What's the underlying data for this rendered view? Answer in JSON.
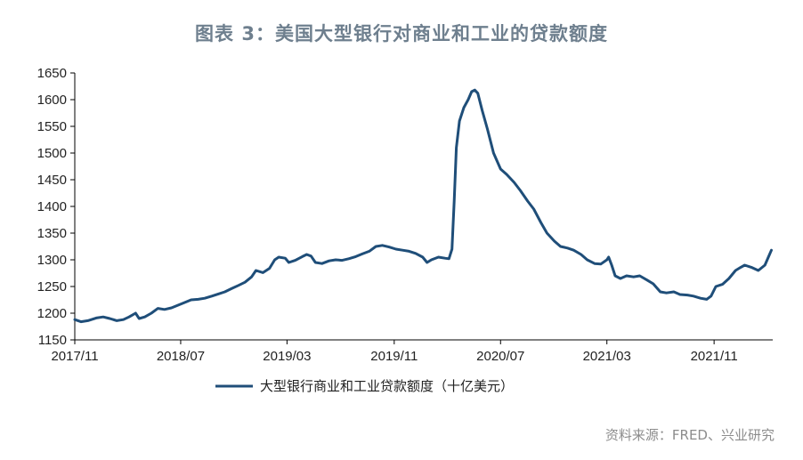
{
  "chart_data": {
    "type": "line",
    "title": "图表 3：美国大型银行对商业和工业的贷款额度",
    "source": "资料来源：FRED、兴业研究",
    "ylim": [
      1150,
      1650
    ],
    "yticks": [
      "1150",
      "1200",
      "1250",
      "1300",
      "1350",
      "1400",
      "1450",
      "1500",
      "1550",
      "1600",
      "1650"
    ],
    "xticks": [
      "2017/11",
      "2018/07",
      "2019/03",
      "2019/11",
      "2020/07",
      "2021/03",
      "2021/11"
    ],
    "legend_position": "bottom",
    "grid": false,
    "color": "#1f4e79",
    "series": [
      {
        "name": "大型银行商业和工业贷款额度（十亿美元）",
        "points": [
          [
            "2017-11-01",
            1188
          ],
          [
            "2017-11-15",
            1184
          ],
          [
            "2017-12-01",
            1186
          ],
          [
            "2017-12-20",
            1191
          ],
          [
            "2018-01-05",
            1193
          ],
          [
            "2018-01-20",
            1190
          ],
          [
            "2018-02-05",
            1186
          ],
          [
            "2018-02-20",
            1188
          ],
          [
            "2018-03-05",
            1193
          ],
          [
            "2018-03-20",
            1200
          ],
          [
            "2018-03-28",
            1190
          ],
          [
            "2018-04-10",
            1193
          ],
          [
            "2018-04-25",
            1200
          ],
          [
            "2018-05-10",
            1209
          ],
          [
            "2018-05-25",
            1207
          ],
          [
            "2018-06-10",
            1210
          ],
          [
            "2018-06-25",
            1215
          ],
          [
            "2018-07-10",
            1220
          ],
          [
            "2018-07-25",
            1225
          ],
          [
            "2018-08-10",
            1226
          ],
          [
            "2018-08-25",
            1228
          ],
          [
            "2018-09-10",
            1232
          ],
          [
            "2018-09-25",
            1236
          ],
          [
            "2018-10-10",
            1240
          ],
          [
            "2018-10-25",
            1246
          ],
          [
            "2018-11-10",
            1252
          ],
          [
            "2018-11-25",
            1258
          ],
          [
            "2018-12-10",
            1268
          ],
          [
            "2018-12-20",
            1280
          ],
          [
            "2019-01-05",
            1276
          ],
          [
            "2019-01-20",
            1284
          ],
          [
            "2019-02-01",
            1300
          ],
          [
            "2019-02-10",
            1305
          ],
          [
            "2019-02-25",
            1303
          ],
          [
            "2019-03-05",
            1295
          ],
          [
            "2019-03-20",
            1299
          ],
          [
            "2019-04-05",
            1306
          ],
          [
            "2019-04-15",
            1310
          ],
          [
            "2019-04-25",
            1307
          ],
          [
            "2019-05-05",
            1295
          ],
          [
            "2019-05-20",
            1293
          ],
          [
            "2019-06-05",
            1298
          ],
          [
            "2019-06-20",
            1300
          ],
          [
            "2019-07-05",
            1299
          ],
          [
            "2019-07-20",
            1302
          ],
          [
            "2019-08-05",
            1306
          ],
          [
            "2019-08-20",
            1311
          ],
          [
            "2019-09-05",
            1316
          ],
          [
            "2019-09-20",
            1325
          ],
          [
            "2019-10-05",
            1327
          ],
          [
            "2019-10-20",
            1324
          ],
          [
            "2019-11-05",
            1320
          ],
          [
            "2019-11-20",
            1318
          ],
          [
            "2019-12-05",
            1316
          ],
          [
            "2019-12-20",
            1312
          ],
          [
            "2020-01-05",
            1305
          ],
          [
            "2020-01-15",
            1295
          ],
          [
            "2020-01-25",
            1300
          ],
          [
            "2020-02-10",
            1305
          ],
          [
            "2020-02-25",
            1303
          ],
          [
            "2020-03-05",
            1302
          ],
          [
            "2020-03-12",
            1320
          ],
          [
            "2020-03-17",
            1410
          ],
          [
            "2020-03-22",
            1510
          ],
          [
            "2020-03-29",
            1560
          ],
          [
            "2020-04-08",
            1585
          ],
          [
            "2020-04-18",
            1600
          ],
          [
            "2020-04-26",
            1615
          ],
          [
            "2020-05-03",
            1618
          ],
          [
            "2020-05-10",
            1612
          ],
          [
            "2020-05-20",
            1580
          ],
          [
            "2020-06-01",
            1545
          ],
          [
            "2020-06-15",
            1500
          ],
          [
            "2020-07-01",
            1470
          ],
          [
            "2020-07-15",
            1460
          ],
          [
            "2020-08-01",
            1445
          ],
          [
            "2020-08-15",
            1430
          ],
          [
            "2020-09-01",
            1410
          ],
          [
            "2020-09-15",
            1395
          ],
          [
            "2020-10-01",
            1370
          ],
          [
            "2020-10-15",
            1350
          ],
          [
            "2020-11-01",
            1335
          ],
          [
            "2020-11-15",
            1325
          ],
          [
            "2020-12-01",
            1322
          ],
          [
            "2020-12-15",
            1318
          ],
          [
            "2021-01-01",
            1310
          ],
          [
            "2021-01-15",
            1300
          ],
          [
            "2021-02-01",
            1293
          ],
          [
            "2021-02-15",
            1292
          ],
          [
            "2021-03-01",
            1300
          ],
          [
            "2021-03-05",
            1305
          ],
          [
            "2021-03-12",
            1290
          ],
          [
            "2021-03-20",
            1270
          ],
          [
            "2021-04-01",
            1265
          ],
          [
            "2021-04-15",
            1270
          ],
          [
            "2021-05-01",
            1268
          ],
          [
            "2021-05-15",
            1270
          ],
          [
            "2021-06-01",
            1262
          ],
          [
            "2021-06-15",
            1255
          ],
          [
            "2021-07-01",
            1240
          ],
          [
            "2021-07-15",
            1238
          ],
          [
            "2021-08-01",
            1240
          ],
          [
            "2021-08-15",
            1235
          ],
          [
            "2021-09-01",
            1234
          ],
          [
            "2021-09-15",
            1232
          ],
          [
            "2021-10-01",
            1228
          ],
          [
            "2021-10-15",
            1226
          ],
          [
            "2021-10-25",
            1232
          ],
          [
            "2021-11-05",
            1250
          ],
          [
            "2021-11-20",
            1254
          ],
          [
            "2021-12-05",
            1265
          ],
          [
            "2021-12-20",
            1280
          ],
          [
            "2022-01-01",
            1286
          ],
          [
            "2022-01-10",
            1290
          ],
          [
            "2022-01-25",
            1286
          ],
          [
            "2022-02-10",
            1280
          ],
          [
            "2022-02-25",
            1290
          ],
          [
            "2022-03-05",
            1305
          ],
          [
            "2022-03-12",
            1318
          ]
        ]
      }
    ]
  }
}
